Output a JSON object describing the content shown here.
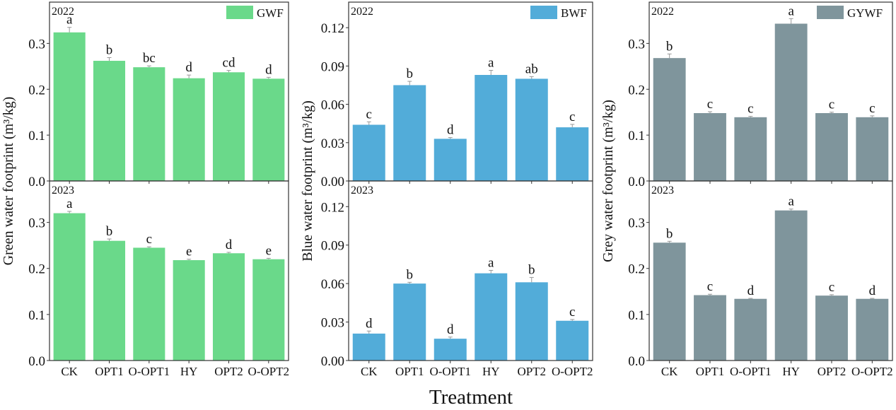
{
  "xlabel": "Treatment",
  "chart_data": [
    {
      "type": "bar",
      "legend": "GWF",
      "legend_position": "top-right",
      "ylabel": "Green water footprint (m³/kg)",
      "color": "#6ad98a",
      "ylim": [
        0,
        0.39
      ],
      "ticks": [
        "0.0",
        "0.1",
        "0.2",
        "0.3"
      ],
      "tick_values": [
        0,
        0.1,
        0.2,
        0.3
      ],
      "categories": [
        "CK",
        "OPT1",
        "O-OPT1",
        "HY",
        "OPT2",
        "O-OPT2"
      ],
      "panels": [
        {
          "year": "2022",
          "values": [
            0.324,
            0.262,
            0.248,
            0.224,
            0.237,
            0.223
          ],
          "errors": [
            0.011,
            0.007,
            0.003,
            0.007,
            0.004,
            0.003
          ],
          "letters": [
            "a",
            "b",
            "bc",
            "d",
            "cd",
            "d"
          ]
        },
        {
          "year": "2023",
          "values": [
            0.32,
            0.26,
            0.245,
            0.218,
            0.233,
            0.22
          ],
          "errors": [
            0.004,
            0.004,
            0.002,
            0.002,
            0.002,
            0.002
          ],
          "letters": [
            "a",
            "b",
            "c",
            "e",
            "d",
            "e"
          ]
        }
      ]
    },
    {
      "type": "bar",
      "legend": "BWF",
      "legend_position": "top-right",
      "ylabel": "Blue water footprint (m³/kg)",
      "color": "#52acd9",
      "ylim": [
        0,
        0.14
      ],
      "ticks": [
        "0.00",
        "0.03",
        "0.06",
        "0.09",
        "0.12"
      ],
      "tick_values": [
        0,
        0.03,
        0.06,
        0.09,
        0.12
      ],
      "categories": [
        "CK",
        "OPT1",
        "O-OPT1",
        "HY",
        "OPT2",
        "O-OPT2"
      ],
      "panels": [
        {
          "year": "2022",
          "values": [
            0.044,
            0.075,
            0.033,
            0.083,
            0.08,
            0.042
          ],
          "errors": [
            0.0023,
            0.003,
            0.001,
            0.0036,
            0.0017,
            0.0023
          ],
          "letters": [
            "c",
            "b",
            "d",
            "a",
            "ab",
            "c"
          ]
        },
        {
          "year": "2023",
          "values": [
            0.021,
            0.06,
            0.017,
            0.068,
            0.061,
            0.031
          ],
          "errors": [
            0.002,
            0.001,
            0.0013,
            0.0023,
            0.0038,
            0.001
          ],
          "letters": [
            "d",
            "b",
            "d",
            "a",
            "b",
            "c"
          ]
        }
      ]
    },
    {
      "type": "bar",
      "legend": "GYWF",
      "legend_position": "top-right",
      "ylabel": "Grey water footprint (m³/kg)",
      "color": "#7f959c",
      "ylim": [
        0,
        0.39
      ],
      "ticks": [
        "0.0",
        "0.1",
        "0.2",
        "0.3"
      ],
      "tick_values": [
        0,
        0.1,
        0.2,
        0.3
      ],
      "categories": [
        "CK",
        "OPT1",
        "O-OPT1",
        "HY",
        "OPT2",
        "O-OPT2"
      ],
      "panels": [
        {
          "year": "2022",
          "values": [
            0.268,
            0.148,
            0.139,
            0.343,
            0.148,
            0.139
          ],
          "errors": [
            0.009,
            0.003,
            0.002,
            0.011,
            0.002,
            0.003
          ],
          "letters": [
            "b",
            "c",
            "c",
            "a",
            "c",
            "c"
          ]
        },
        {
          "year": "2023",
          "values": [
            0.256,
            0.142,
            0.134,
            0.326,
            0.141,
            0.134
          ],
          "errors": [
            0.003,
            0.002,
            0.001,
            0.003,
            0.002,
            0.001
          ],
          "letters": [
            "b",
            "c",
            "d",
            "a",
            "c",
            "d"
          ]
        }
      ]
    }
  ]
}
